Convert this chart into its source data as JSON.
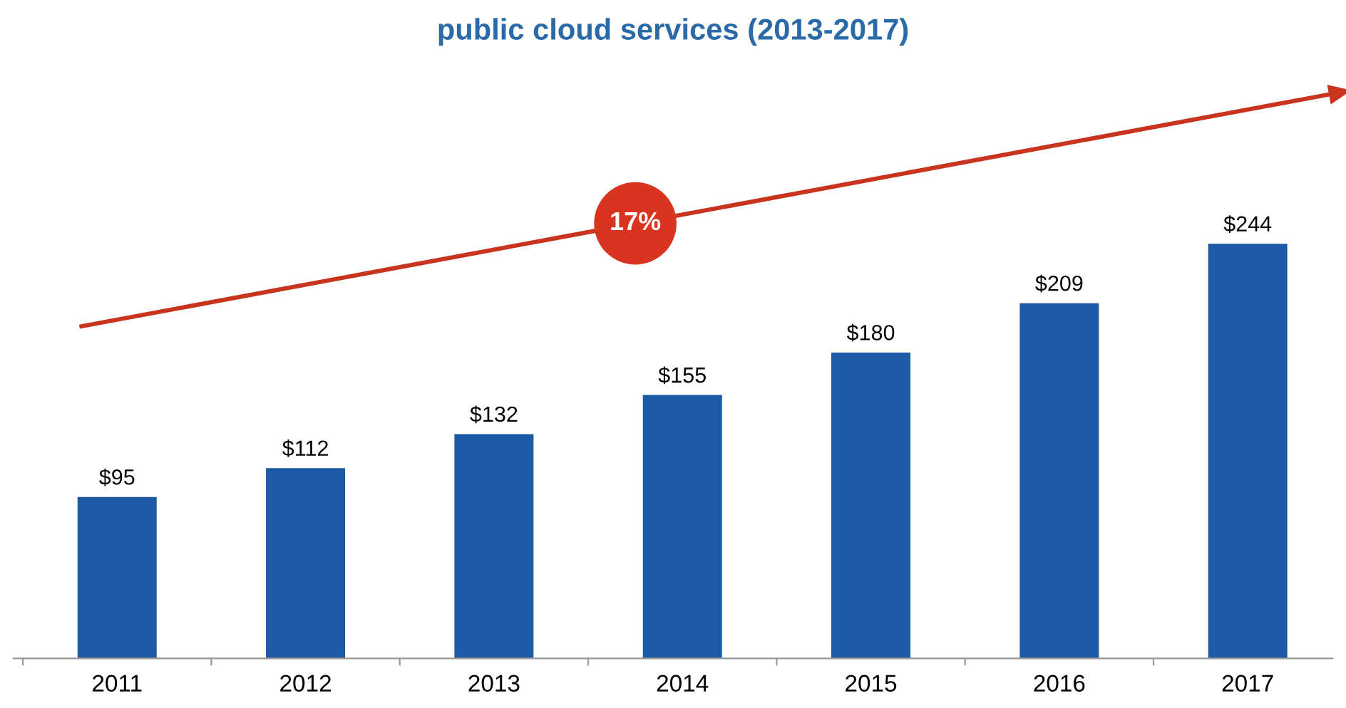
{
  "chart_data": {
    "type": "bar",
    "title": "public cloud services (2013-2017)",
    "categories": [
      "2011",
      "2012",
      "2013",
      "2014",
      "2015",
      "2016",
      "2017"
    ],
    "values": [
      95,
      112,
      132,
      155,
      180,
      209,
      244
    ],
    "value_labels": [
      "$95",
      "$112",
      "$132",
      "$155",
      "$180",
      "$209",
      "$244"
    ],
    "color": "#1c5aa6",
    "annotations": [
      "17%"
    ],
    "grid": false,
    "legend": false
  }
}
